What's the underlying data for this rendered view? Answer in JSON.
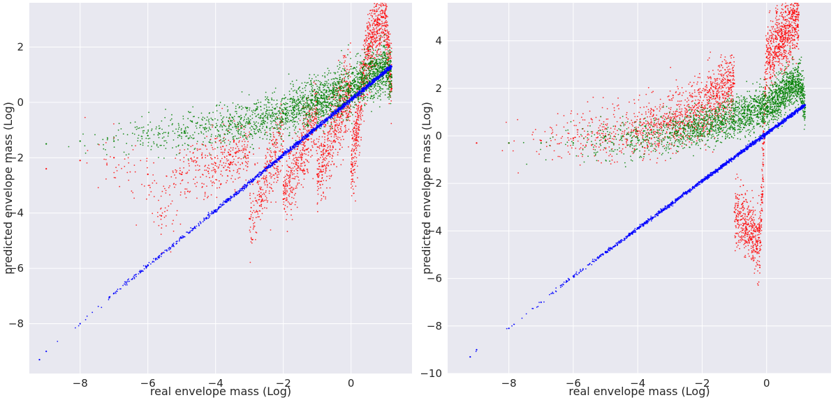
{
  "chart_data": [
    {
      "type": "scatter",
      "title": "",
      "xlabel": "real envelope mass (Log)",
      "ylabel": "predicted envelope mass (Log)",
      "xlim": [
        -9.5,
        1.8
      ],
      "ylim": [
        -9.8,
        3.6
      ],
      "xticks": [
        -8,
        -6,
        -4,
        -2,
        0
      ],
      "yticks": [
        -8,
        -6,
        -4,
        -2,
        0,
        2
      ],
      "xtick_labels": [
        "−8",
        "−6",
        "−4",
        "−2",
        "0"
      ],
      "ytick_labels": [
        "−8",
        "−6",
        "−4",
        "−2",
        "0",
        "2"
      ],
      "grid": true,
      "background": "#e8e8f0",
      "series": [
        {
          "color": "#ff0000",
          "shape": "red cloud widening with x",
          "points": [
            [
              -9.0,
              -2.4
            ],
            [
              -8.0,
              -2.1
            ],
            [
              -7.0,
              -2.0
            ],
            [
              -6.0,
              -2.6
            ],
            [
              -5.6,
              -4.1
            ],
            [
              -5.0,
              -2.6
            ],
            [
              -4.0,
              -2.2
            ],
            [
              -3.0,
              -1.8
            ],
            [
              -3.0,
              -4.2
            ],
            [
              -2.0,
              -1.4
            ],
            [
              -2.0,
              -3.5
            ],
            [
              -1.0,
              -0.4
            ],
            [
              -1.0,
              -2.6
            ],
            [
              0.0,
              0.6
            ],
            [
              0.0,
              -2.5
            ],
            [
              0.5,
              2.0
            ],
            [
              1.0,
              3.2
            ],
            [
              1.2,
              0.5
            ]
          ]
        },
        {
          "color": "#008000",
          "shape": "green band above the diagonal",
          "points": [
            [
              -9.0,
              -1.5
            ],
            [
              -8.0,
              -1.4
            ],
            [
              -7.0,
              -1.4
            ],
            [
              -6.0,
              -1.2
            ],
            [
              -5.0,
              -1.1
            ],
            [
              -4.0,
              -0.9
            ],
            [
              -3.0,
              -0.7
            ],
            [
              -2.0,
              -0.4
            ],
            [
              -1.0,
              0.0
            ],
            [
              0.0,
              0.5
            ],
            [
              1.0,
              1.3
            ],
            [
              1.2,
              0.9
            ]
          ]
        },
        {
          "color": "#0000ff",
          "shape": "tight diagonal line y≈x",
          "points": [
            [
              -9.2,
              -9.3
            ],
            [
              -9.0,
              -9.0
            ],
            [
              -8.0,
              -8.0
            ],
            [
              -7.0,
              -6.9
            ],
            [
              -6.0,
              -5.9
            ],
            [
              -5.0,
              -4.9
            ],
            [
              -4.0,
              -3.9
            ],
            [
              -3.0,
              -2.9
            ],
            [
              -2.0,
              -1.9
            ],
            [
              -1.0,
              -0.9
            ],
            [
              0.0,
              0.1
            ],
            [
              1.0,
              1.1
            ],
            [
              1.2,
              1.3
            ]
          ]
        }
      ]
    },
    {
      "type": "scatter",
      "title": "",
      "xlabel": "real envelope mass (Log)",
      "ylabel": "predicted envelope mass (Log)",
      "xlim": [
        -9.9,
        2.0
      ],
      "ylim": [
        -10.0,
        5.6
      ],
      "xticks": [
        -8,
        -6,
        -4,
        -2,
        0
      ],
      "yticks": [
        -10,
        -8,
        -6,
        -4,
        -2,
        0,
        2,
        4
      ],
      "xtick_labels": [
        "−8",
        "−6",
        "−4",
        "−2",
        "0"
      ],
      "ytick_labels": [
        "−10",
        "−8",
        "−6",
        "−4",
        "−2",
        "0",
        "2",
        "4"
      ],
      "grid": true,
      "background": "#e8e8f0",
      "series": [
        {
          "color": "#ff0000",
          "shape": "red cloud rising steeply above the green",
          "points": [
            [
              -9.0,
              -0.3
            ],
            [
              -8.0,
              -0.3
            ],
            [
              -7.0,
              -0.2
            ],
            [
              -6.0,
              -0.1
            ],
            [
              -5.0,
              0.0
            ],
            [
              -4.0,
              0.2
            ],
            [
              -3.0,
              0.6
            ],
            [
              -2.0,
              1.2
            ],
            [
              -1.0,
              2.2
            ],
            [
              0.0,
              3.3
            ],
            [
              0.5,
              4.2
            ],
            [
              1.0,
              5.1
            ],
            [
              -0.2,
              -4.5
            ],
            [
              -1.0,
              -3.2
            ]
          ]
        },
        {
          "color": "#008000",
          "shape": "green band roughly flat near y≈0..2",
          "points": [
            [
              -8.0,
              -0.3
            ],
            [
              -7.0,
              -0.3
            ],
            [
              -6.0,
              -0.3
            ],
            [
              -5.0,
              -0.2
            ],
            [
              -4.0,
              -0.1
            ],
            [
              -3.0,
              0.1
            ],
            [
              -2.0,
              0.4
            ],
            [
              -1.0,
              0.8
            ],
            [
              0.0,
              1.2
            ],
            [
              1.0,
              2.3
            ],
            [
              1.2,
              1.2
            ]
          ]
        },
        {
          "color": "#0000ff",
          "shape": "tight diagonal line y≈x",
          "points": [
            [
              -9.2,
              -9.3
            ],
            [
              -9.0,
              -9.0
            ],
            [
              -8.0,
              -8.1
            ],
            [
              -7.0,
              -7.0
            ],
            [
              -6.0,
              -5.9
            ],
            [
              -5.0,
              -4.9
            ],
            [
              -4.0,
              -3.9
            ],
            [
              -3.0,
              -2.9
            ],
            [
              -2.0,
              -1.9
            ],
            [
              -1.0,
              -0.9
            ],
            [
              0.0,
              0.1
            ],
            [
              1.0,
              1.1
            ],
            [
              1.2,
              1.3
            ]
          ]
        }
      ]
    }
  ]
}
